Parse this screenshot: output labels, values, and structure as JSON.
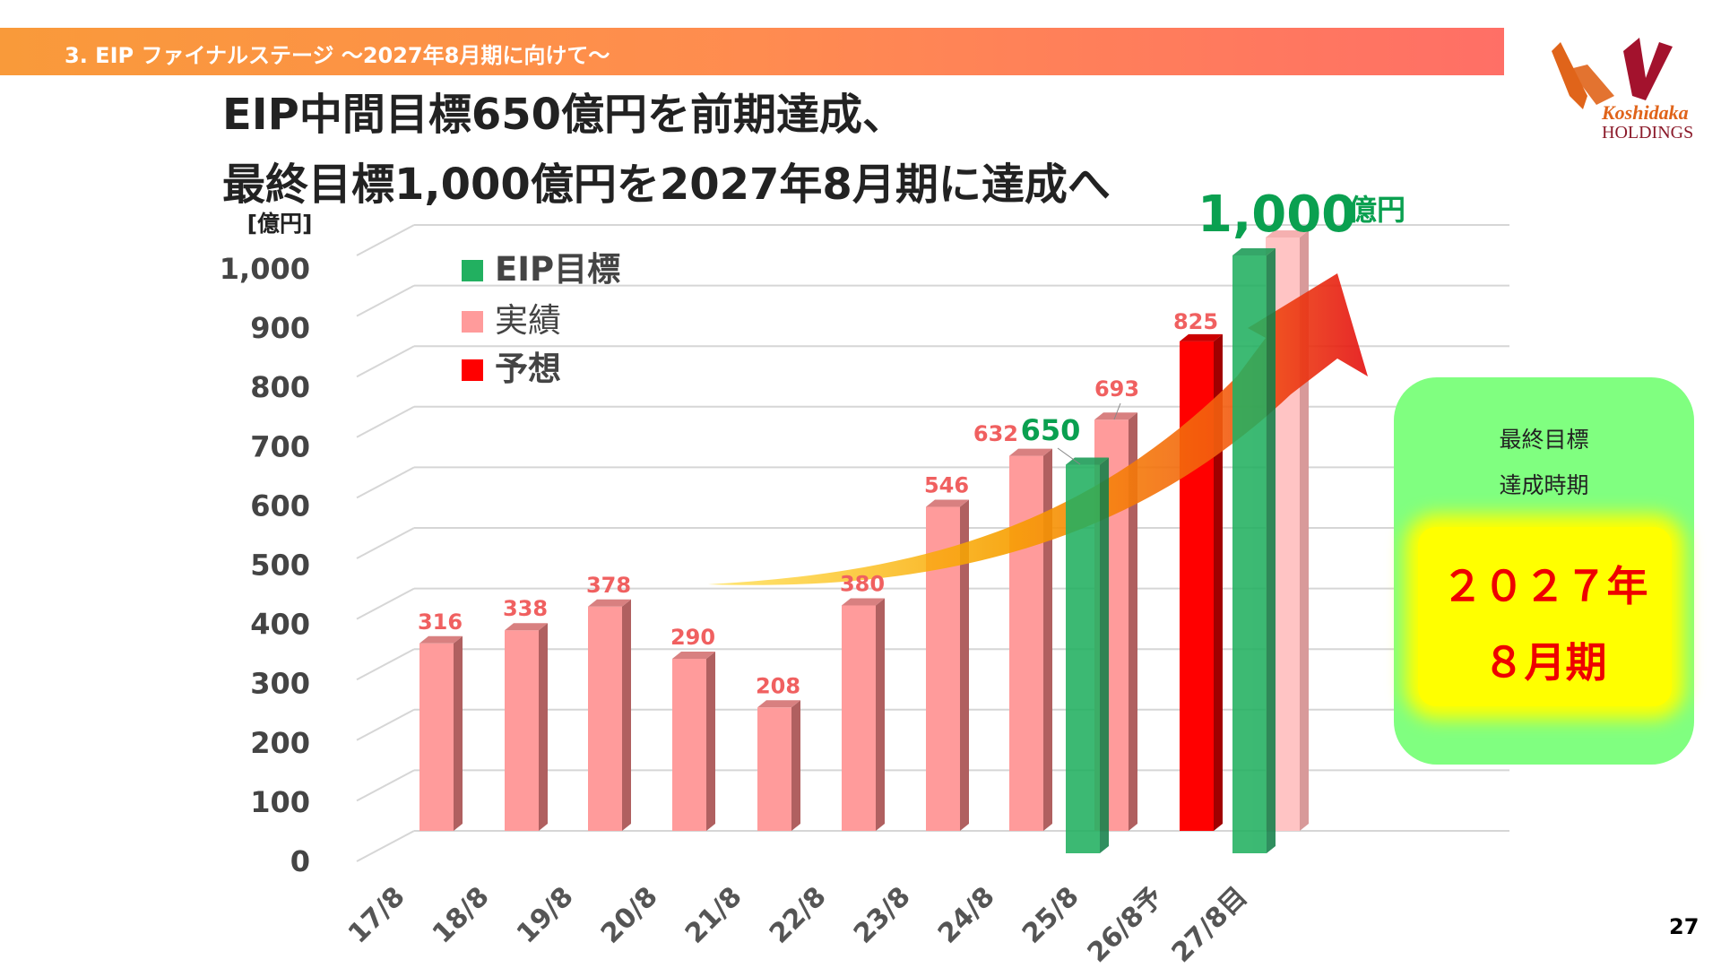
{
  "header": {
    "section_title": "3. EIP ファイナルステージ ～2027年8月期に向けて～"
  },
  "title": {
    "line1": "EIP中間目標650億円を前期達成、",
    "line2": "最終目標1,000億円を2027年8月期に達成へ"
  },
  "logo": {
    "brand": "Koshidaka",
    "sub": "HOLDINGS"
  },
  "callout": {
    "big_value": "1,000",
    "big_unit": "億円"
  },
  "side_box": {
    "line1": "最終目標",
    "line2": "達成時期",
    "year": "２０２７年",
    "period": "８月期",
    "bg_color": "#80ff80",
    "highlight_color": "#ffff00"
  },
  "page_number": "27",
  "chart_data": {
    "type": "bar",
    "ylabel": "[億円]",
    "ylim": [
      0,
      1000
    ],
    "yticks": [
      "0",
      "100",
      "200",
      "300",
      "400",
      "500",
      "600",
      "700",
      "800",
      "900",
      "1,000"
    ],
    "categories": [
      "17/8",
      "18/8",
      "19/8",
      "20/8",
      "21/8",
      "22/8",
      "23/8",
      "24/8",
      "25/8",
      "26/8予",
      "27/8目"
    ],
    "grid": true,
    "legend_position": "top-left",
    "series": [
      {
        "name": "EIP目標",
        "color": "#22b060",
        "values": [
          null,
          null,
          null,
          null,
          null,
          null,
          null,
          null,
          650,
          null,
          1000
        ]
      },
      {
        "name": "実績",
        "color": "#ff9999",
        "values": [
          316,
          338,
          378,
          290,
          208,
          380,
          546,
          632,
          693,
          null,
          null
        ]
      },
      {
        "name": "予想",
        "color": "#ff0000",
        "values": [
          null,
          null,
          null,
          null,
          null,
          null,
          null,
          null,
          null,
          825,
          null
        ]
      }
    ],
    "data_labels": [
      "316",
      "338",
      "378",
      "290",
      "208",
      "380",
      "546",
      "632",
      "650",
      "693",
      "825"
    ]
  }
}
